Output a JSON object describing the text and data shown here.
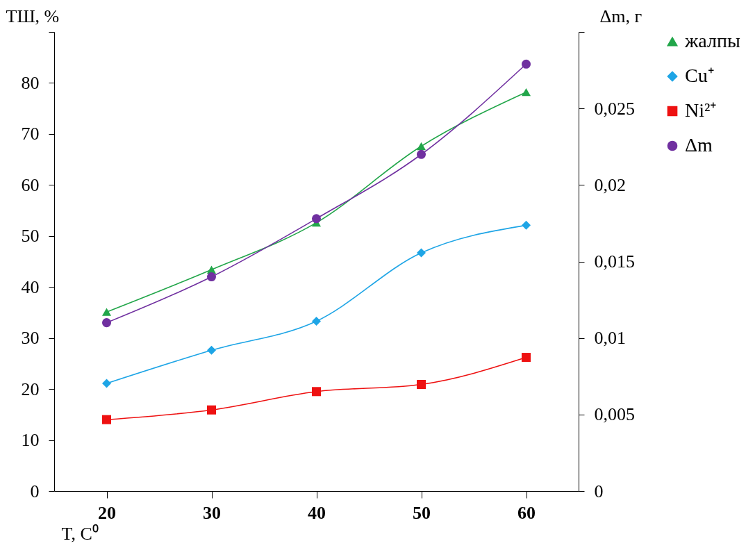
{
  "chart_data": {
    "type": "line",
    "xlabel": "T, C⁰",
    "ylabel": "ТШ, %",
    "y2label": "Δm, г",
    "x": [
      20,
      30,
      40,
      50,
      60
    ],
    "xlim": [
      15,
      65
    ],
    "xticks": [
      20,
      30,
      40,
      50,
      60
    ],
    "ylim": [
      0,
      90
    ],
    "yticks": [
      0,
      10,
      20,
      30,
      40,
      50,
      60,
      70,
      80,
      {
        "value": 90,
        "label": null
      }
    ],
    "y2lim": [
      0,
      0.03
    ],
    "y2ticks": [
      {
        "value": 0,
        "label": "0"
      },
      {
        "value": 0.005,
        "label": "0,005"
      },
      {
        "value": 0.01,
        "label": "0,01"
      },
      {
        "value": 0.015,
        "label": "0,015"
      },
      {
        "value": 0.02,
        "label": "0,02"
      },
      {
        "value": 0.025,
        "label": "0,025"
      },
      {
        "value": 0.03,
        "label": null
      }
    ],
    "grid": false,
    "legend": "right",
    "series": [
      {
        "name": "жалпы",
        "color": "#22a64a",
        "marker": "triangle",
        "values": [
          35.1,
          43.4,
          52.6,
          67.6,
          78.2
        ]
      },
      {
        "name": "Cu⁺",
        "color": "#1ea5e6",
        "marker": "diamond",
        "values": [
          21.1,
          27.6,
          33.3,
          46.7,
          52.1
        ]
      },
      {
        "name": "Ni²⁺",
        "color": "#ee1111",
        "marker": "square",
        "values": [
          14.0,
          15.9,
          19.5,
          20.9,
          26.2
        ]
      },
      {
        "name": "Δm",
        "color": "#7030a0",
        "marker": "circle",
        "axis": "y2",
        "values": [
          0.011,
          0.014,
          0.0178,
          0.022,
          0.0279
        ]
      }
    ]
  }
}
